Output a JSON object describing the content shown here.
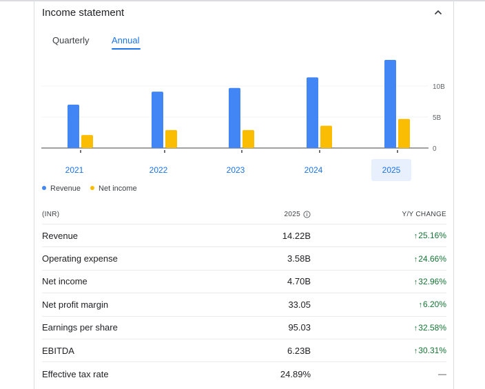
{
  "header": {
    "title": "Income statement",
    "collapse_icon": "chevron-up-icon"
  },
  "tabs": [
    {
      "label": "Quarterly",
      "active": false
    },
    {
      "label": "Annual",
      "active": true
    }
  ],
  "colors": {
    "revenue": "#4285f4",
    "net_income": "#fbbc04",
    "accent": "#1a73e8",
    "positive": "#137333"
  },
  "chart_data": {
    "type": "bar",
    "categories": [
      "2021",
      "2022",
      "2023",
      "2024",
      "2025"
    ],
    "selected_category": "2025",
    "series": [
      {
        "name": "Revenue",
        "values": [
          7.0,
          9.1,
          9.7,
          11.4,
          14.22
        ]
      },
      {
        "name": "Net income",
        "values": [
          2.1,
          2.9,
          2.9,
          3.6,
          4.7
        ]
      }
    ],
    "y_ticks": [
      "0",
      "5B",
      "10B"
    ],
    "ylim": [
      0,
      15
    ],
    "legend": "bottom-left",
    "grid": true
  },
  "legend": {
    "revenue": "Revenue",
    "net_income": "Net income"
  },
  "table": {
    "headers": {
      "label": "(INR)",
      "value": "2025",
      "change": "Y/Y CHANGE"
    },
    "rows": [
      {
        "label": "Revenue",
        "value": "14.22B",
        "change": "25.16%",
        "direction": "up"
      },
      {
        "label": "Operating expense",
        "value": "3.58B",
        "change": "24.66%",
        "direction": "up"
      },
      {
        "label": "Net income",
        "value": "4.70B",
        "change": "32.96%",
        "direction": "up"
      },
      {
        "label": "Net profit margin",
        "value": "33.05",
        "change": "6.20%",
        "direction": "up"
      },
      {
        "label": "Earnings per share",
        "value": "95.03",
        "change": "32.58%",
        "direction": "up"
      },
      {
        "label": "EBITDA",
        "value": "6.23B",
        "change": "30.31%",
        "direction": "up"
      },
      {
        "label": "Effective tax rate",
        "value": "24.89%",
        "change": "—",
        "direction": "none"
      }
    ]
  }
}
